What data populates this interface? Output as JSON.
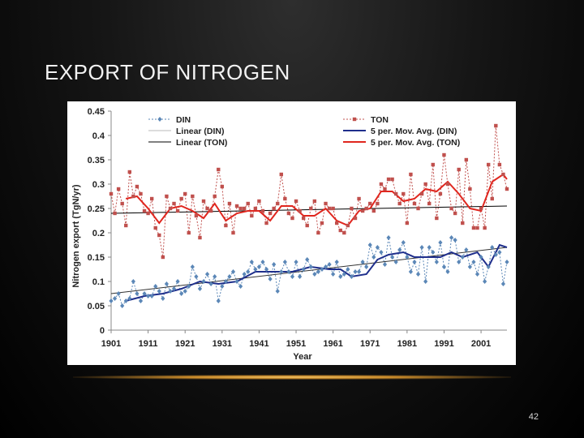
{
  "slide": {
    "title": "EXPORT OF NITROGEN",
    "page_number": "42",
    "accent_color": "#d89a3a"
  },
  "chart_data": {
    "type": "line",
    "title": "",
    "xlabel": "Year",
    "ylabel": "Nitrogen export (TgN/yr)",
    "xlim": [
      1901,
      2008
    ],
    "ylim": [
      0,
      0.45
    ],
    "xticks": [
      1901,
      1911,
      1921,
      1931,
      1941,
      1951,
      1961,
      1971,
      1981,
      1991,
      2001
    ],
    "yticks": [
      "0",
      "0.05",
      "0.1",
      "0.15",
      "0.2",
      "0.25",
      "0.3",
      "0.35",
      "0.4",
      "0.45"
    ],
    "grid": false,
    "legend_position": "top",
    "legend": [
      {
        "label": "DIN",
        "color": "#5b87b7",
        "style": "dotted-diamond"
      },
      {
        "label": "TON",
        "color": "#c0504d",
        "style": "dotted-square"
      },
      {
        "label": "Linear (DIN)",
        "color": "#b8b8b8",
        "style": "solid-thin"
      },
      {
        "label": "5 per. Mov. Avg. (DIN)",
        "color": "#1f2f8c",
        "style": "solid-thick"
      },
      {
        "label": "Linear (TON)",
        "color": "#000000",
        "style": "solid-thin"
      },
      {
        "label": "5 per. Mov. Avg. (TON)",
        "color": "#e0261e",
        "style": "solid-thick"
      }
    ],
    "series": [
      {
        "name": "DIN",
        "color": "#5b87b7",
        "marker": "diamond",
        "x": [
          1901,
          1902,
          1903,
          1904,
          1905,
          1906,
          1907,
          1908,
          1909,
          1910,
          1911,
          1912,
          1913,
          1914,
          1915,
          1916,
          1917,
          1918,
          1919,
          1920,
          1921,
          1922,
          1923,
          1924,
          1925,
          1926,
          1927,
          1928,
          1929,
          1930,
          1931,
          1932,
          1933,
          1934,
          1935,
          1936,
          1937,
          1938,
          1939,
          1940,
          1941,
          1942,
          1943,
          1944,
          1945,
          1946,
          1947,
          1948,
          1949,
          1950,
          1951,
          1952,
          1953,
          1954,
          1955,
          1956,
          1957,
          1958,
          1959,
          1960,
          1961,
          1962,
          1963,
          1964,
          1965,
          1966,
          1967,
          1968,
          1969,
          1970,
          1971,
          1972,
          1973,
          1974,
          1975,
          1976,
          1977,
          1978,
          1979,
          1980,
          1981,
          1982,
          1983,
          1984,
          1985,
          1986,
          1987,
          1988,
          1989,
          1990,
          1991,
          1992,
          1993,
          1994,
          1995,
          1996,
          1997,
          1998,
          1999,
          2000,
          2001,
          2002,
          2003,
          2004,
          2005,
          2006,
          2007,
          2008
        ],
        "values": [
          0.06,
          0.065,
          0.075,
          0.05,
          0.06,
          0.065,
          0.1,
          0.075,
          0.06,
          0.075,
          0.07,
          0.07,
          0.09,
          0.08,
          0.065,
          0.095,
          0.08,
          0.085,
          0.1,
          0.075,
          0.08,
          0.09,
          0.13,
          0.11,
          0.085,
          0.1,
          0.115,
          0.095,
          0.11,
          0.06,
          0.09,
          0.1,
          0.11,
          0.12,
          0.1,
          0.09,
          0.115,
          0.12,
          0.14,
          0.125,
          0.13,
          0.14,
          0.125,
          0.105,
          0.135,
          0.08,
          0.12,
          0.14,
          0.12,
          0.11,
          0.14,
          0.11,
          0.125,
          0.145,
          0.13,
          0.115,
          0.12,
          0.125,
          0.13,
          0.135,
          0.115,
          0.14,
          0.11,
          0.115,
          0.125,
          0.11,
          0.12,
          0.12,
          0.14,
          0.13,
          0.175,
          0.15,
          0.17,
          0.16,
          0.135,
          0.19,
          0.15,
          0.14,
          0.165,
          0.18,
          0.15,
          0.12,
          0.14,
          0.115,
          0.17,
          0.1,
          0.17,
          0.16,
          0.14,
          0.18,
          0.13,
          0.12,
          0.19,
          0.185,
          0.14,
          0.15,
          0.165,
          0.13,
          0.14,
          0.115,
          0.15,
          0.1,
          0.13,
          0.17,
          0.155,
          0.16,
          0.095,
          0.14
        ]
      },
      {
        "name": "TON",
        "color": "#c0504d",
        "marker": "square",
        "x": [
          1901,
          1902,
          1903,
          1904,
          1905,
          1906,
          1907,
          1908,
          1909,
          1910,
          1911,
          1912,
          1913,
          1914,
          1915,
          1916,
          1917,
          1918,
          1919,
          1920,
          1921,
          1922,
          1923,
          1924,
          1925,
          1926,
          1927,
          1928,
          1929,
          1930,
          1931,
          1932,
          1933,
          1934,
          1935,
          1936,
          1937,
          1938,
          1939,
          1940,
          1941,
          1942,
          1943,
          1944,
          1945,
          1946,
          1947,
          1948,
          1949,
          1950,
          1951,
          1952,
          1953,
          1954,
          1955,
          1956,
          1957,
          1958,
          1959,
          1960,
          1961,
          1962,
          1963,
          1964,
          1965,
          1966,
          1967,
          1968,
          1969,
          1970,
          1971,
          1972,
          1973,
          1974,
          1975,
          1976,
          1977,
          1978,
          1979,
          1980,
          1981,
          1982,
          1983,
          1984,
          1985,
          1986,
          1987,
          1988,
          1989,
          1990,
          1991,
          1992,
          1993,
          1994,
          1995,
          1996,
          1997,
          1998,
          1999,
          2000,
          2001,
          2002,
          2003,
          2004,
          2005,
          2006,
          2007,
          2008
        ],
        "values": [
          0.28,
          0.24,
          0.29,
          0.26,
          0.215,
          0.325,
          0.275,
          0.295,
          0.28,
          0.245,
          0.24,
          0.27,
          0.21,
          0.195,
          0.15,
          0.275,
          0.25,
          0.26,
          0.245,
          0.27,
          0.28,
          0.2,
          0.275,
          0.235,
          0.19,
          0.265,
          0.25,
          0.245,
          0.275,
          0.33,
          0.295,
          0.215,
          0.26,
          0.2,
          0.255,
          0.25,
          0.25,
          0.26,
          0.235,
          0.25,
          0.265,
          0.245,
          0.22,
          0.24,
          0.25,
          0.26,
          0.32,
          0.27,
          0.24,
          0.23,
          0.265,
          0.245,
          0.23,
          0.215,
          0.25,
          0.265,
          0.2,
          0.22,
          0.26,
          0.25,
          0.25,
          0.22,
          0.205,
          0.2,
          0.215,
          0.25,
          0.23,
          0.27,
          0.245,
          0.25,
          0.26,
          0.245,
          0.26,
          0.3,
          0.29,
          0.31,
          0.31,
          0.28,
          0.26,
          0.28,
          0.22,
          0.32,
          0.26,
          0.25,
          0.28,
          0.3,
          0.26,
          0.34,
          0.23,
          0.28,
          0.36,
          0.3,
          0.25,
          0.24,
          0.33,
          0.22,
          0.35,
          0.29,
          0.21,
          0.21,
          0.25,
          0.21,
          0.34,
          0.27,
          0.42,
          0.34,
          0.32,
          0.29
        ]
      },
      {
        "name": "Linear (DIN)",
        "color": "#b8b8b8",
        "x": [
          1901,
          2008
        ],
        "values": [
          0.075,
          0.17
        ]
      },
      {
        "name": "Linear (TON)",
        "color": "#000000",
        "x": [
          1901,
          2008
        ],
        "values": [
          0.24,
          0.255
        ]
      },
      {
        "name": "5 per. Mov. Avg. (DIN)",
        "color": "#1f2f8c",
        "x": [
          1905,
          1910,
          1915,
          1920,
          1925,
          1930,
          1935,
          1940,
          1945,
          1950,
          1955,
          1960,
          1963,
          1966,
          1970,
          1973,
          1976,
          1980,
          1983,
          1986,
          1990,
          1993,
          1996,
          2000,
          2003,
          2006,
          2008
        ],
        "values": [
          0.06,
          0.07,
          0.075,
          0.085,
          0.1,
          0.095,
          0.1,
          0.12,
          0.12,
          0.12,
          0.13,
          0.125,
          0.125,
          0.11,
          0.115,
          0.145,
          0.155,
          0.16,
          0.15,
          0.15,
          0.15,
          0.16,
          0.15,
          0.16,
          0.13,
          0.175,
          0.17
        ]
      },
      {
        "name": "5 per. Mov. Avg. (TON)",
        "color": "#e0261e",
        "x": [
          1905,
          1908,
          1911,
          1914,
          1917,
          1920,
          1923,
          1926,
          1929,
          1932,
          1935,
          1938,
          1941,
          1944,
          1947,
          1950,
          1953,
          1956,
          1959,
          1962,
          1965,
          1968,
          1971,
          1974,
          1977,
          1980,
          1983,
          1986,
          1989,
          1992,
          1995,
          1998,
          2001,
          2004,
          2007,
          2008
        ],
        "values": [
          0.27,
          0.275,
          0.25,
          0.22,
          0.25,
          0.255,
          0.245,
          0.23,
          0.26,
          0.225,
          0.24,
          0.245,
          0.245,
          0.225,
          0.255,
          0.255,
          0.235,
          0.235,
          0.25,
          0.225,
          0.215,
          0.245,
          0.25,
          0.285,
          0.285,
          0.265,
          0.27,
          0.29,
          0.285,
          0.305,
          0.28,
          0.25,
          0.245,
          0.305,
          0.32,
          0.31
        ]
      }
    ]
  }
}
